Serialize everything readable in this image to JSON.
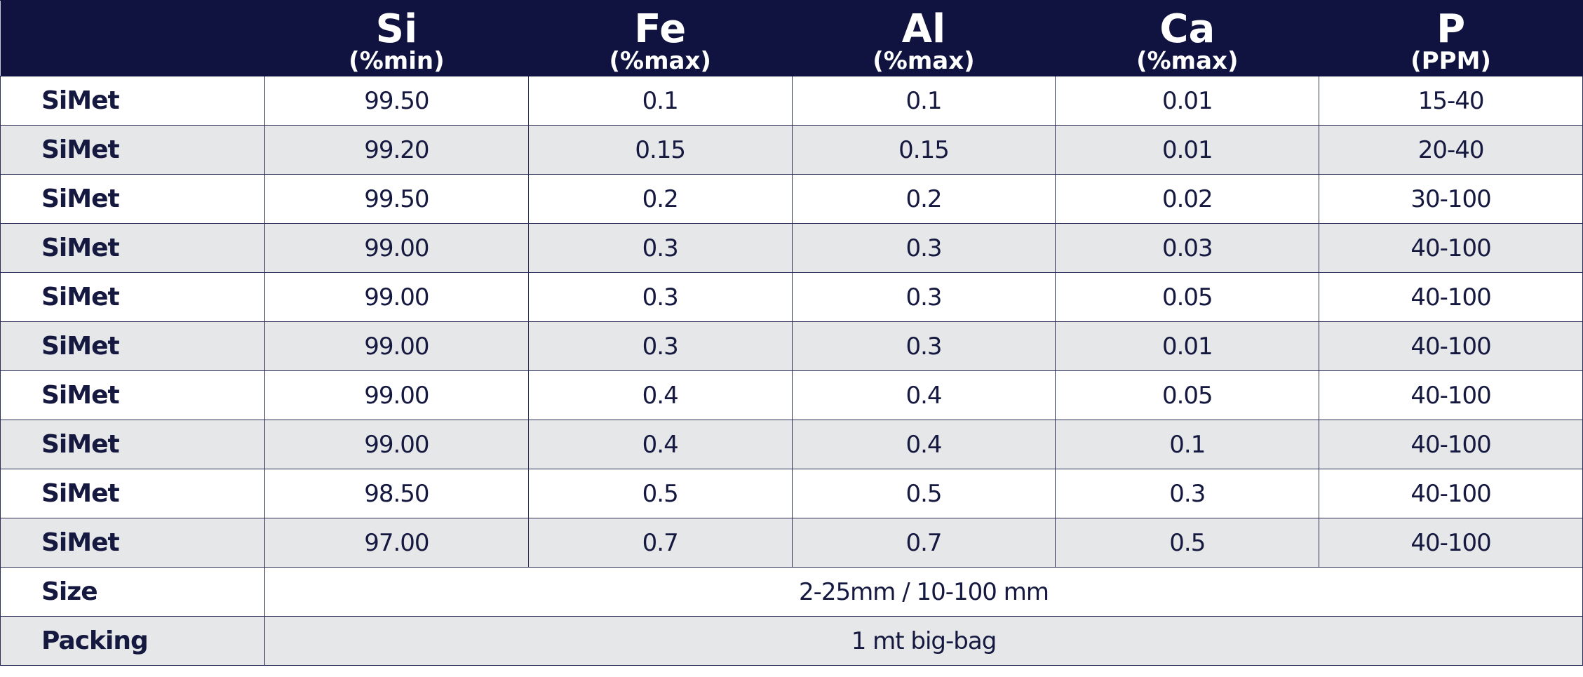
{
  "table": {
    "columns": [
      {
        "name": "Si",
        "unit": "(%min)"
      },
      {
        "name": "Fe",
        "unit": "(%max)"
      },
      {
        "name": "Al",
        "unit": "(%max)"
      },
      {
        "name": "Ca",
        "unit": "(%max)"
      },
      {
        "name": "P",
        "unit": "(PPM)"
      }
    ],
    "rows": [
      {
        "label": "SiMet",
        "values": [
          "99.50",
          "0.1",
          "0.1",
          "0.01",
          "15-40"
        ]
      },
      {
        "label": "SiMet",
        "values": [
          "99.20",
          "0.15",
          "0.15",
          "0.01",
          "20-40"
        ]
      },
      {
        "label": "SiMet",
        "values": [
          "99.50",
          "0.2",
          "0.2",
          "0.02",
          "30-100"
        ]
      },
      {
        "label": "SiMet",
        "values": [
          "99.00",
          "0.3",
          "0.3",
          "0.03",
          "40-100"
        ]
      },
      {
        "label": "SiMet",
        "values": [
          "99.00",
          "0.3",
          "0.3",
          "0.05",
          "40-100"
        ]
      },
      {
        "label": "SiMet",
        "values": [
          "99.00",
          "0.3",
          "0.3",
          "0.01",
          "40-100"
        ]
      },
      {
        "label": "SiMet",
        "values": [
          "99.00",
          "0.4",
          "0.4",
          "0.05",
          "40-100"
        ]
      },
      {
        "label": "SiMet",
        "values": [
          "99.00",
          "0.4",
          "0.4",
          "0.1",
          "40-100"
        ]
      },
      {
        "label": "SiMet",
        "values": [
          "98.50",
          "0.5",
          "0.5",
          "0.3",
          "40-100"
        ]
      },
      {
        "label": "SiMet",
        "values": [
          "97.00",
          "0.7",
          "0.7",
          "0.5",
          "40-100"
        ]
      }
    ],
    "footer": [
      {
        "label": "Size",
        "value": "2-25mm / 10-100 mm"
      },
      {
        "label": "Packing",
        "value": "1 mt big-bag"
      }
    ]
  }
}
